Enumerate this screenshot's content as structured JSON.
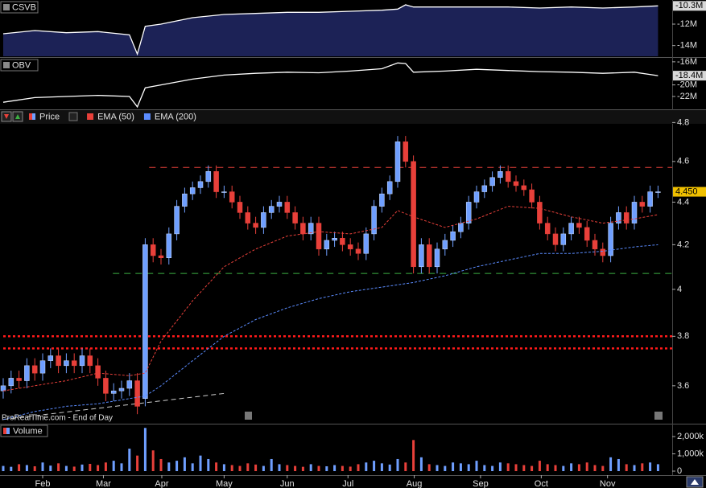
{
  "chart_data": [
    {
      "type": "line",
      "title": "CSVB",
      "color": "#ffffff",
      "fill": "#1c2256",
      "x": [
        0,
        4,
        8,
        12,
        16,
        17,
        18,
        20,
        24,
        28,
        32,
        36,
        40,
        44,
        48,
        50,
        51,
        52,
        56,
        60,
        64,
        68,
        72,
        76,
        80,
        83
      ],
      "values": [
        -12.9,
        -12.6,
        -12.8,
        -12.7,
        -13.0,
        -14.8,
        -12.2,
        -12.0,
        -11.4,
        -11.1,
        -11.0,
        -10.9,
        -10.9,
        -10.8,
        -10.7,
        -10.6,
        -10.2,
        -10.4,
        -10.4,
        -10.4,
        -10.4,
        -10.5,
        -10.4,
        -10.5,
        -10.4,
        -10.3
      ],
      "ylim": [
        -15.0,
        -9.9
      ],
      "yticks": [
        {
          "value": -12,
          "label": "-12M"
        },
        {
          "value": -14,
          "label": "-14M"
        }
      ],
      "current": {
        "value": -10.3,
        "label": "-10.3M"
      }
    },
    {
      "type": "line",
      "title": "OBV",
      "color": "#ffffff",
      "x": [
        0,
        4,
        8,
        12,
        16,
        17,
        18,
        20,
        24,
        28,
        32,
        36,
        40,
        44,
        48,
        50,
        51,
        52,
        56,
        60,
        64,
        68,
        72,
        76,
        80,
        83
      ],
      "values": [
        -23.0,
        -22.2,
        -22.0,
        -21.8,
        -22.0,
        -23.8,
        -20.5,
        -20.0,
        -19.0,
        -18.3,
        -18.0,
        -17.8,
        -17.9,
        -17.6,
        -17.2,
        -16.2,
        -16.3,
        -17.8,
        -17.6,
        -17.3,
        -17.5,
        -17.7,
        -17.8,
        -18.0,
        -17.8,
        -18.4
      ],
      "ylim": [
        -23.95,
        -15.6
      ],
      "yticks": [
        {
          "value": -16,
          "label": "-16M"
        },
        {
          "value": -20,
          "label": "-20M"
        },
        {
          "value": -22,
          "label": "-22M"
        }
      ],
      "current": {
        "value": -18.4,
        "label": "-18.4M"
      }
    },
    {
      "type": "candlestick",
      "log": true,
      "ylim": [
        3.46,
        4.81
      ],
      "yticks": [
        4.8,
        4.6,
        4.4,
        4.2,
        4,
        3.8,
        3.6
      ],
      "current": {
        "value": 4.45,
        "label": "4.450"
      },
      "source": "ProRealTime.com - End of Day",
      "xticks": [
        {
          "value": 5.0,
          "label": "Feb"
        },
        {
          "value": 12.7,
          "label": "Mar"
        },
        {
          "value": 20.1,
          "label": "Apr"
        },
        {
          "value": 28.0,
          "label": "May"
        },
        {
          "value": 36.0,
          "label": "Jun"
        },
        {
          "value": 43.7,
          "label": "Jul"
        },
        {
          "value": 52.1,
          "label": "Aug"
        },
        {
          "value": 60.5,
          "label": "Sep"
        },
        {
          "value": 68.2,
          "label": "Oct"
        },
        {
          "value": 76.6,
          "label": "Nov"
        }
      ],
      "series": [
        {
          "name": "Price",
          "up_color": "#6f9fff",
          "down_color": "#e8403a",
          "open": [
            3.58,
            3.6,
            3.63,
            3.62,
            3.68,
            3.65,
            3.7,
            3.72,
            3.68,
            3.7,
            3.68,
            3.72,
            3.68,
            3.63,
            3.57,
            3.58,
            3.59,
            3.62,
            3.55,
            4.2,
            4.15,
            4.14,
            4.25,
            4.38,
            4.44,
            4.47,
            4.5,
            4.55,
            4.45,
            4.45,
            4.4,
            4.35,
            4.3,
            4.28,
            4.35,
            4.38,
            4.4,
            4.35,
            4.3,
            4.25,
            4.3,
            4.18,
            4.22,
            4.23,
            4.2,
            4.18,
            4.16,
            4.25,
            4.38,
            4.44,
            4.5,
            4.7,
            4.6,
            4.1,
            4.2,
            4.1,
            4.18,
            4.22,
            4.26,
            4.3,
            4.4,
            4.45,
            4.48,
            4.52,
            4.55,
            4.5,
            4.48,
            4.46,
            4.4,
            4.3,
            4.25,
            4.2,
            4.25,
            4.3,
            4.28,
            4.22,
            4.18,
            4.15,
            4.3,
            4.35,
            4.3,
            4.4,
            4.38,
            4.45
          ],
          "high": [
            3.63,
            3.66,
            3.66,
            3.71,
            3.71,
            3.73,
            3.75,
            3.75,
            3.73,
            3.73,
            3.75,
            3.75,
            3.71,
            3.66,
            3.61,
            3.62,
            3.65,
            3.65,
            4.23,
            4.23,
            4.18,
            4.28,
            4.41,
            4.47,
            4.5,
            4.53,
            4.58,
            4.58,
            4.48,
            4.48,
            4.43,
            4.38,
            4.33,
            4.38,
            4.41,
            4.43,
            4.43,
            4.38,
            4.33,
            4.33,
            4.33,
            4.25,
            4.26,
            4.26,
            4.23,
            4.21,
            4.28,
            4.41,
            4.47,
            4.53,
            4.73,
            4.73,
            4.63,
            4.23,
            4.23,
            4.21,
            4.25,
            4.29,
            4.33,
            4.43,
            4.48,
            4.51,
            4.55,
            4.58,
            4.58,
            4.53,
            4.51,
            4.49,
            4.43,
            4.33,
            4.28,
            4.28,
            4.33,
            4.33,
            4.31,
            4.25,
            4.21,
            4.33,
            4.38,
            4.38,
            4.43,
            4.43,
            4.48,
            4.48
          ],
          "low": [
            3.55,
            3.57,
            3.59,
            3.59,
            3.62,
            3.62,
            3.67,
            3.65,
            3.65,
            3.65,
            3.65,
            3.65,
            3.6,
            3.54,
            3.54,
            3.55,
            3.56,
            3.49,
            3.52,
            4.12,
            4.11,
            4.11,
            4.22,
            4.35,
            4.41,
            4.44,
            4.47,
            4.42,
            4.42,
            4.37,
            4.32,
            4.27,
            4.25,
            4.25,
            4.32,
            4.35,
            4.32,
            4.27,
            4.22,
            4.22,
            4.15,
            4.15,
            4.19,
            4.17,
            4.15,
            4.13,
            4.13,
            4.22,
            4.35,
            4.41,
            4.47,
            4.57,
            4.07,
            4.07,
            4.07,
            4.07,
            4.15,
            4.19,
            4.23,
            4.27,
            4.37,
            4.42,
            4.45,
            4.49,
            4.47,
            4.45,
            4.43,
            4.37,
            4.27,
            4.22,
            4.17,
            4.17,
            4.22,
            4.25,
            4.19,
            4.15,
            4.12,
            4.12,
            4.27,
            4.27,
            4.27,
            4.35,
            4.35,
            4.42
          ],
          "close": [
            3.6,
            3.63,
            3.62,
            3.68,
            3.65,
            3.7,
            3.72,
            3.68,
            3.7,
            3.68,
            3.72,
            3.68,
            3.63,
            3.57,
            3.58,
            3.59,
            3.62,
            3.52,
            4.2,
            4.15,
            4.14,
            4.25,
            4.38,
            4.44,
            4.47,
            4.5,
            4.55,
            4.45,
            4.45,
            4.4,
            4.35,
            4.3,
            4.28,
            4.35,
            4.38,
            4.4,
            4.35,
            4.3,
            4.25,
            4.3,
            4.18,
            4.22,
            4.23,
            4.2,
            4.18,
            4.16,
            4.25,
            4.38,
            4.44,
            4.5,
            4.7,
            4.6,
            4.1,
            4.2,
            4.1,
            4.18,
            4.22,
            4.26,
            4.3,
            4.4,
            4.45,
            4.48,
            4.52,
            4.55,
            4.5,
            4.48,
            4.46,
            4.4,
            4.3,
            4.25,
            4.2,
            4.25,
            4.3,
            4.28,
            4.22,
            4.18,
            4.15,
            4.3,
            4.35,
            4.3,
            4.4,
            4.38,
            4.45,
            4.45
          ]
        },
        {
          "name": "EMA (50)",
          "color": "#e8403a",
          "style": "dashed",
          "x": [
            0,
            4,
            8,
            12,
            16,
            18,
            20,
            24,
            28,
            32,
            36,
            40,
            44,
            48,
            50,
            52,
            56,
            60,
            64,
            68,
            72,
            76,
            80,
            83
          ],
          "values": [
            3.58,
            3.6,
            3.62,
            3.65,
            3.64,
            3.65,
            3.78,
            3.95,
            4.1,
            4.18,
            4.24,
            4.26,
            4.25,
            4.28,
            4.36,
            4.33,
            4.28,
            4.32,
            4.38,
            4.37,
            4.33,
            4.3,
            4.32,
            4.34
          ]
        },
        {
          "name": "EMA (200)",
          "color": "#5b8cff",
          "style": "dashed",
          "x": [
            0,
            4,
            8,
            12,
            16,
            18,
            20,
            24,
            28,
            32,
            36,
            40,
            44,
            48,
            52,
            56,
            60,
            64,
            68,
            72,
            76,
            80,
            83
          ],
          "values": [
            3.47,
            3.5,
            3.52,
            3.53,
            3.55,
            3.56,
            3.6,
            3.7,
            3.8,
            3.87,
            3.92,
            3.96,
            3.99,
            4.01,
            4.03,
            4.06,
            4.1,
            4.13,
            4.16,
            4.16,
            4.17,
            4.19,
            4.2
          ]
        }
      ],
      "levels": [
        {
          "value": 4.57,
          "color": "#e8403a",
          "style": "dashed",
          "start": 18.5
        },
        {
          "value": 4.07,
          "color": "#3cb043",
          "style": "dashed",
          "start": 13.9
        },
        {
          "value": 3.8,
          "color": "#ff1a1a",
          "style": "dotted",
          "start": 0
        },
        {
          "value": 3.75,
          "color": "#ff1a1a",
          "style": "dotted",
          "start": 0
        }
      ],
      "trendline": {
        "color": "#cfcfcf",
        "x": [
          0,
          28
        ],
        "values": [
          3.47,
          3.57
        ]
      }
    },
    {
      "type": "bar",
      "title": "Volume",
      "ylim": [
        0,
        2700
      ],
      "yticks": [
        {
          "value": 2000,
          "label": "2,000k"
        },
        {
          "value": 1000,
          "label": "1,000k"
        },
        0
      ],
      "values": [
        300,
        250,
        400,
        350,
        280,
        500,
        320,
        450,
        300,
        260,
        380,
        420,
        350,
        500,
        600,
        450,
        1300,
        900,
        2500,
        1200,
        700,
        500,
        600,
        800,
        450,
        900,
        700,
        500,
        400,
        350,
        300,
        450,
        380,
        300,
        700,
        400,
        350,
        300,
        250,
        400,
        300,
        280,
        350,
        300,
        260,
        400,
        500,
        600,
        450,
        380,
        700,
        500,
        1800,
        800,
        400,
        350,
        300,
        500,
        450,
        400,
        600,
        350,
        300,
        500,
        450,
        400,
        350,
        300,
        600,
        400,
        350,
        300,
        450,
        400,
        500,
        350,
        300,
        800,
        700,
        400,
        350,
        450,
        500,
        400
      ]
    }
  ]
}
